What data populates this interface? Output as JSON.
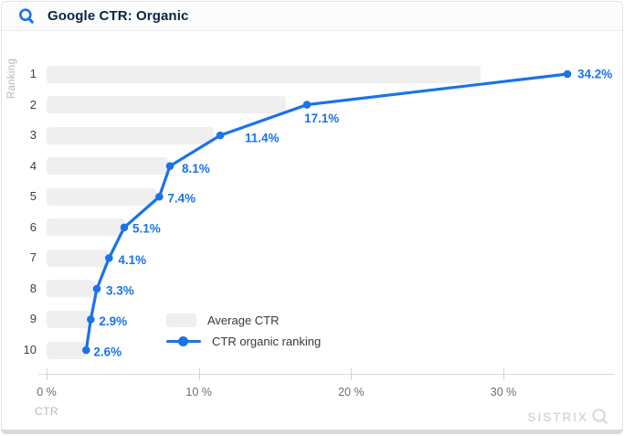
{
  "header": {
    "title": "Google CTR: Organic"
  },
  "axes": {
    "y_title": "Ranking",
    "x_title": "CTR"
  },
  "legend": {
    "average_label": "Average CTR",
    "line_label": "CTR organic ranking"
  },
  "watermark": {
    "text": "SISTRIX"
  },
  "colors": {
    "line_blue": "#1a73e8",
    "bar_gray": "#efefef",
    "title_navy": "#0a2540",
    "axis_text": "#6e6e6e",
    "muted_text": "#b4b7bb",
    "watermark_gray": "#d9d9d9"
  },
  "chart_data": {
    "type": "bar+line",
    "title": "Google CTR: Organic",
    "xlabel": "CTR",
    "ylabel": "Ranking",
    "categories": [
      "1",
      "2",
      "3",
      "4",
      "5",
      "6",
      "7",
      "8",
      "9",
      "10"
    ],
    "x_ticks": [
      {
        "value": 0,
        "label": "0 %"
      },
      {
        "value": 10,
        "label": "10 %"
      },
      {
        "value": 20,
        "label": "20 %"
      },
      {
        "value": 30,
        "label": "30 %"
      }
    ],
    "xlim": [
      0,
      36.5
    ],
    "grid": false,
    "legend_position": "bottom-center-inside",
    "series": [
      {
        "name": "Average CTR",
        "type": "bar",
        "values": [
          28.5,
          15.7,
          11.0,
          8.0,
          7.2,
          5.1,
          4.0,
          3.2,
          2.8,
          2.5
        ]
      },
      {
        "name": "CTR organic ranking",
        "type": "line",
        "values": [
          34.2,
          17.1,
          11.4,
          8.1,
          7.4,
          5.1,
          4.1,
          3.3,
          2.9,
          2.6
        ],
        "point_labels": [
          "34.2%",
          "17.1%",
          "11.4%",
          "8.1%",
          "7.4%",
          "5.1%",
          "4.1%",
          "3.3%",
          "2.9%",
          "2.6%"
        ]
      }
    ]
  }
}
